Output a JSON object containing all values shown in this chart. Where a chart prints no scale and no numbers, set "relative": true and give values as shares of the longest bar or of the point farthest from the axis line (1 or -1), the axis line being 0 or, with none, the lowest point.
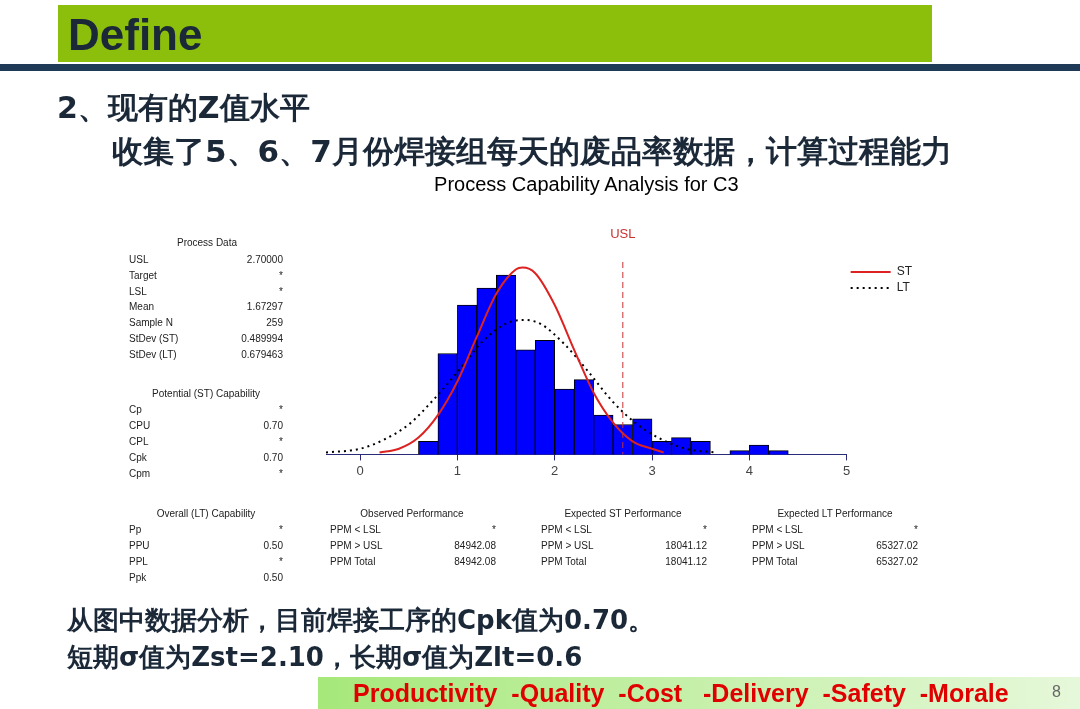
{
  "chart_data": {
    "type": "histogram",
    "title": "Process Capability Analysis for C3",
    "relative": true,
    "bins": [
      0.6,
      0.8,
      1.0,
      1.2,
      1.4,
      1.6,
      1.8,
      2.0,
      2.2,
      2.4,
      2.6,
      2.8,
      3.0,
      3.2,
      3.4,
      3.6,
      3.8,
      4.0,
      4.2,
      4.4
    ],
    "values": [
      0.07,
      0.54,
      0.8,
      0.89,
      0.96,
      0.56,
      0.61,
      0.35,
      0.4,
      0.21,
      0.16,
      0.19,
      0.07,
      0.09,
      0.07,
      0,
      0.02,
      0.05,
      0.02
    ],
    "color": "#0000ff",
    "series": [
      {
        "name": "ST",
        "type": "line",
        "color": "#dd2222",
        "line_style": "solid",
        "x": [
          0.2,
          0.4,
          0.6,
          0.8,
          1.0,
          1.2,
          1.4,
          1.6,
          1.67,
          1.8,
          2.0,
          2.2,
          2.4,
          2.6,
          2.8,
          3.0,
          3.12
        ],
        "values": [
          0.01,
          0.03,
          0.09,
          0.21,
          0.39,
          0.63,
          0.86,
          0.99,
          1,
          0.97,
          0.8,
          0.56,
          0.33,
          0.17,
          0.07,
          0.03,
          0.01
        ]
      },
      {
        "name": "LT",
        "type": "line",
        "color": "#000000",
        "line_style": "dotted",
        "x": [
          -0.35,
          0,
          0.25,
          0.5,
          0.75,
          1.0,
          1.25,
          1.5,
          1.67,
          1.85,
          2.1,
          2.35,
          2.6,
          2.85,
          3.1,
          3.35,
          3.65
        ],
        "values": [
          0.01,
          0.03,
          0.08,
          0.16,
          0.29,
          0.44,
          0.6,
          0.7,
          0.72,
          0.7,
          0.59,
          0.44,
          0.28,
          0.16,
          0.08,
          0.03,
          0.01
        ]
      }
    ],
    "xlim": [
      -0.35,
      5
    ],
    "xticks": [
      0,
      1,
      2,
      3,
      4,
      5
    ],
    "ref_lines": [
      {
        "axis": "x",
        "value": 2.7,
        "label": "USL",
        "color": "#c83232",
        "line_style": "dashed"
      }
    ],
    "legend": "top right",
    "annotations": [
      "Define",
      "2、现有的Z值水平",
      "收集了5、6、7月份焊接组每天的废品率数据，计算过程能力",
      "Process Data",
      "USL",
      "2.70000",
      "Target",
      "*",
      "LSL",
      "*",
      "Mean",
      "1.67297",
      "Sample N",
      "259",
      "StDev (ST)",
      "0.489994",
      "StDev (LT)",
      "0.679463",
      "Potential (ST) Capability",
      "Cp",
      "*",
      "CPU",
      "0.70",
      "CPL",
      "*",
      "Cpk",
      "0.70",
      "Cpm",
      "*",
      "Overall (LT) Capability",
      "Pp",
      "*",
      "PPU",
      "0.50",
      "PPL",
      "*",
      "Ppk",
      "0.50",
      "Observed Performance",
      "PPM < LSL",
      "*",
      "PPM > USL",
      "84942.08",
      "PPM Total",
      "84942.08",
      "Expected ST Performance",
      "PPM < LSL",
      "*",
      "PPM > USL",
      "18041.12",
      "PPM Total",
      "18041.12",
      "Expected LT Performance",
      "PPM < LSL",
      "*",
      "PPM > USL",
      "65327.02",
      "PPM Total",
      "65327.02",
      "从图中数据分析，目前焊接工序的Cpk值为0.70。",
      "短期σ值为Zst=2.10，长期σ值为Zlt=0.6",
      "Productivity  -Quality  -Cost   -Delivery  -Safety  -Morale",
      "8"
    ]
  }
}
